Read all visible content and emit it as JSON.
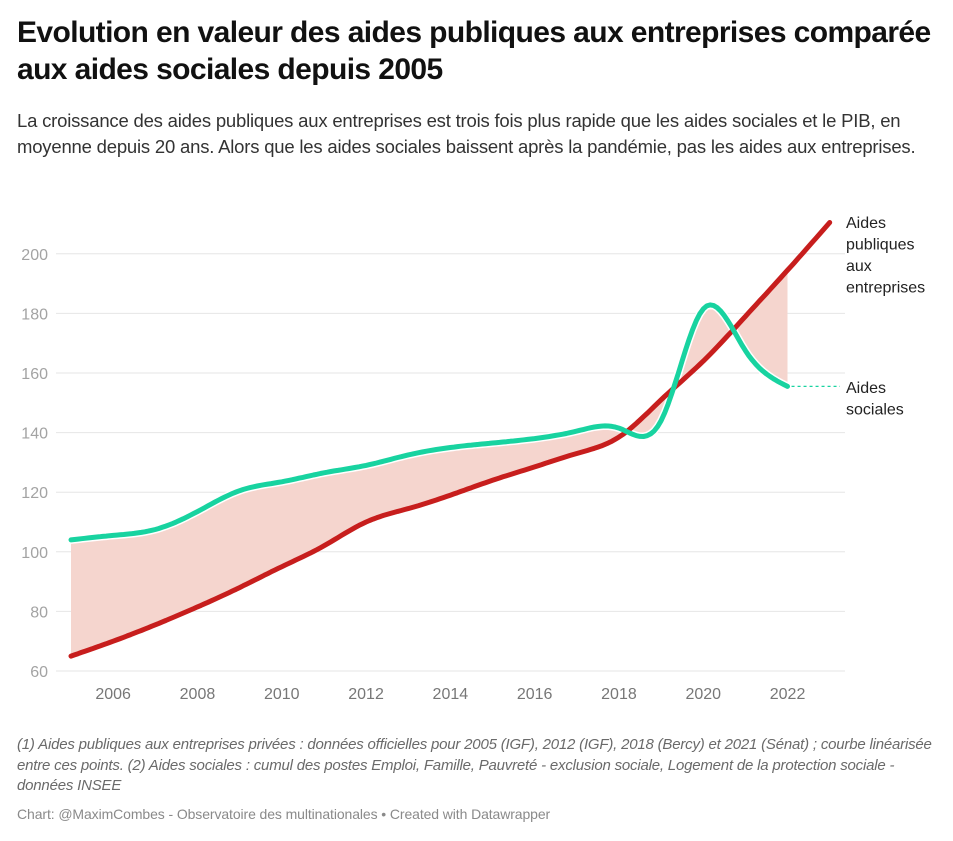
{
  "header": {
    "title": "Evolution en valeur des aides publiques aux entreprises comparée aux aides sociales depuis 2005",
    "subtitle": "La croissance des aides publiques aux entreprises est trois fois plus rapide que les aides sociales et le PIB, en moyenne depuis 20 ans. Alors que les aides sociales baissent après la pandémie, pas les aides aux entreprises."
  },
  "footer": {
    "notes": "(1) Aides publiques aux entreprises privées : données officielles pour 2005 (IGF), 2012 (IGF), 2018 (Bercy) et 2021 (Sénat) ; courbe linéarisée entre ces points. (2) Aides sociales : cumul des postes Emploi, Famille, Pauvreté - exclusion sociale, Logement de la protection sociale - données INSEE",
    "byline": "Chart: @MaximCombes - Observatoire des multinationales • Created with Datawrapper"
  },
  "colors": {
    "aides_entreprises": "#c71e1d",
    "aides_sociales": "#18d3a0",
    "gap_fill": "#f5d5ce",
    "grid": "#e6e6e6"
  },
  "chart_data": {
    "type": "line",
    "title": "Evolution en valeur des aides publiques aux entreprises comparée aux aides sociales depuis 2005",
    "xlabel": "",
    "ylabel": "",
    "xlim": [
      2005,
      2023
    ],
    "ylim": [
      60,
      210
    ],
    "yticks": [
      60,
      80,
      100,
      120,
      140,
      160,
      180,
      200
    ],
    "xticks": [
      2006,
      2008,
      2010,
      2012,
      2014,
      2016,
      2018,
      2020,
      2022
    ],
    "grid": true,
    "legend": "direct-labels-right",
    "area_between_series": true,
    "series": [
      {
        "name": "Aides publiques aux entreprises",
        "label_lines": [
          "Aides",
          "publiques",
          "aux",
          "entreprises"
        ],
        "x": [
          2005,
          2006,
          2007,
          2008,
          2009,
          2010,
          2011,
          2012,
          2013,
          2014,
          2015,
          2016,
          2017,
          2018,
          2019,
          2020,
          2021,
          2022,
          2023
        ],
        "values": [
          65,
          70,
          75.5,
          81.5,
          88,
          95,
          102,
          110,
          114.5,
          119,
          124,
          128.5,
          133,
          138.5,
          151,
          164,
          179,
          194.5,
          210.5
        ]
      },
      {
        "name": "Aides sociales",
        "label_lines": [
          "Aides",
          "sociales"
        ],
        "x": [
          2005,
          2006,
          2007,
          2008,
          2009,
          2010,
          2011,
          2012,
          2013,
          2014,
          2015,
          2016,
          2017,
          2018,
          2019,
          2020,
          2021,
          2022
        ],
        "values": [
          104,
          105.5,
          107.5,
          113.5,
          120.5,
          123.5,
          126.5,
          129,
          132.5,
          135,
          136.5,
          138,
          140.5,
          141.5,
          144,
          181.5,
          167.5,
          155.5
        ]
      }
    ]
  }
}
